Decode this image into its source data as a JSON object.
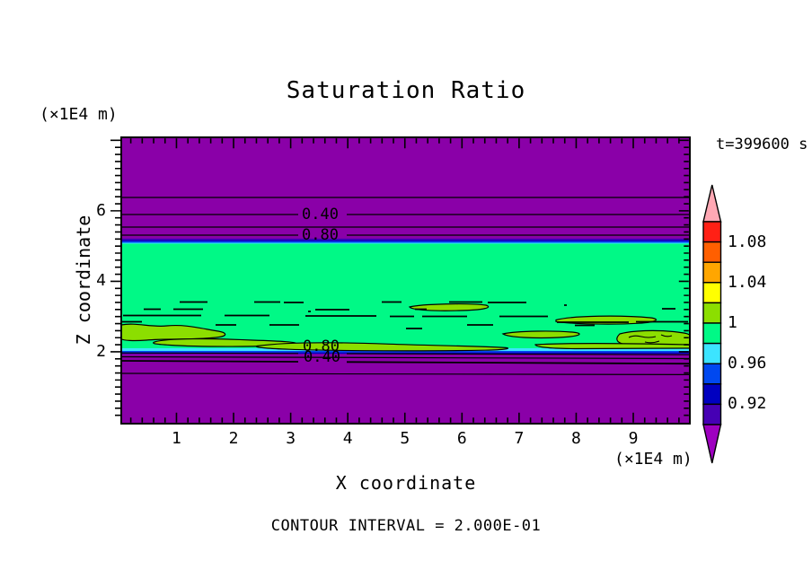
{
  "title": "Saturation Ratio",
  "annotations": {
    "time_label": "t=399600 s",
    "caption": "CONTOUR INTERVAL = 2.000E-01"
  },
  "axes": {
    "x_label": "X coordinate",
    "x_unit": "(×1E4 m)",
    "x_tick_labels": [
      "1",
      "2",
      "3",
      "4",
      "5",
      "6",
      "7",
      "8",
      "9"
    ],
    "z_label": "Z coordinate",
    "z_unit": "(×1E4 m)",
    "z_tick_labels": [
      "2",
      "4",
      "6"
    ]
  },
  "contour_labels": {
    "upper": [
      "0.40",
      "0.80"
    ],
    "lower": [
      "0.80",
      "0.40"
    ]
  },
  "colorbar": {
    "tick_labels": [
      "1.08",
      "1.04",
      "1",
      "0.96",
      "0.92"
    ],
    "segment_colors_top_to_bottom": [
      "#FF2015",
      "#FF5F00",
      "#FFA600",
      "#FFFF00",
      "#8CDE00",
      "#00F986",
      "#3CE4FF",
      "#0048F0",
      "#0000C0",
      "#4600B4"
    ],
    "above_range_color": "#FFA8B4",
    "below_range_color": "#9E00C0"
  },
  "palette": {
    "purple": "#8A00A8",
    "green": "#00F986",
    "chartreuse": "#8CDE00",
    "cyan": "#3CE4FF",
    "blue": "#0048F0",
    "navy": "#0000C0",
    "indigo": "#4600B4"
  },
  "chart_data": {
    "type": "heatmap",
    "subtype": "filled-contour",
    "title": "Saturation Ratio",
    "xlabel": "X coordinate (×1E4 m)",
    "ylabel": "Z coordinate (×1E4 m)",
    "xlim": [
      0,
      10
    ],
    "ylim": [
      0,
      8.1
    ],
    "x_major_ticks": [
      1,
      2,
      3,
      4,
      5,
      6,
      7,
      8,
      9
    ],
    "x_minor_step": 0.2,
    "z_major_ticks": [
      2,
      4,
      6
    ],
    "z_minor_step": 0.2,
    "time_seconds": 399600,
    "contour_interval": 0.2,
    "labeled_contour_values": [
      0.4,
      0.8
    ],
    "colorbar": {
      "value_range": [
        0.9,
        1.1
      ],
      "segment_interval": 0.02,
      "labeled_values": [
        1.08,
        1.04,
        1.0,
        0.96,
        0.92
      ],
      "above_range": "pink arrow (> 1.10)",
      "below_range": "purple arrow (< 0.90)"
    },
    "field_bands": [
      {
        "region": "z > ~5.2 (top of domain)",
        "value": "< 0.2, undersaturated; below colorbar range (purple)"
      },
      {
        "region": "z ≈ 5.05–6.4",
        "value": "rapid rise 0.2→0.9; horizontal contours at 0.2, 0.4, 0.6, 0.8 with thin indigo/navy/blue/cyan color stripes at the band edge"
      },
      {
        "region": "z ≈ 2.1–5.05",
        "value": "0.98–1.00 saturated layer (spring green)"
      },
      {
        "region": "z ≈ 2.0–2.7, patchy lenses",
        "value": "1.00–1.02 slightly supersaturated lenses (yellow-green) outlined by fragmented 1.0 contours"
      },
      {
        "region": "z ≈ 1.35–2.0",
        "value": "rapid fall 0.9→0.2; contours at 0.8, 0.6, 0.4, 0.2"
      },
      {
        "region": "z < ~1.35 (bottom of domain)",
        "value": "< 0.2, undersaturated (purple)"
      }
    ],
    "grid": false,
    "legend_position": "right colorbar"
  }
}
